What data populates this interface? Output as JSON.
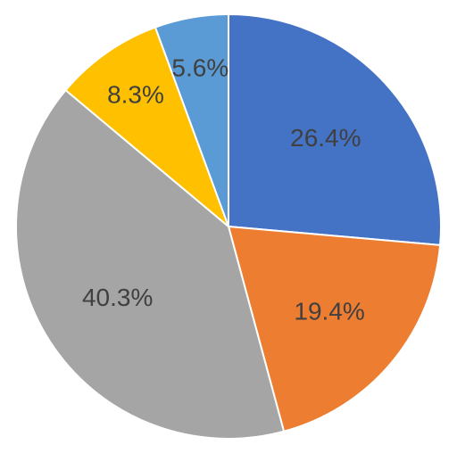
{
  "chart_data": {
    "type": "pie",
    "start_angle_deg": 0,
    "direction": "clockwise",
    "slices": [
      {
        "value": 26.4,
        "label": "26.4%",
        "color": "#4472C4"
      },
      {
        "value": 19.4,
        "label": "19.4%",
        "color": "#ED7D31"
      },
      {
        "value": 40.3,
        "label": "40.3%",
        "color": "#A5A5A5"
      },
      {
        "value": 8.3,
        "label": "8.3%",
        "color": "#FFC000"
      },
      {
        "value": 5.6,
        "label": "5.6%",
        "color": "#5B9BD5"
      }
    ]
  }
}
